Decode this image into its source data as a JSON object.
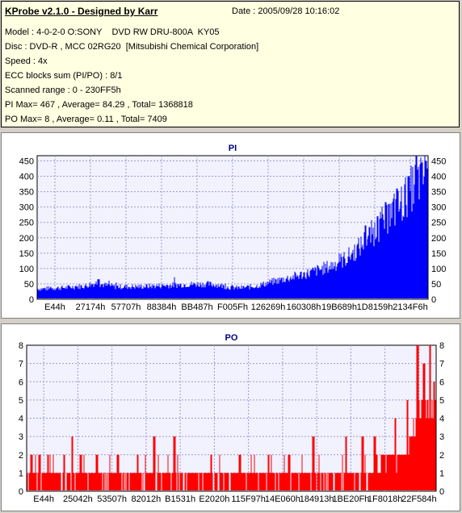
{
  "header": {
    "title": "KProbe v2.1.0 - Designed by Karr",
    "date": "Date : 2005/09/28 10:16:02",
    "lines": [
      "Model : 4-0-2-0 O:SONY    DVD RW DRU-800A  KY05",
      "Disc : DVD-R , MCC 02RG20  [Mitsubishi Chemical Corporation]",
      "Speed : 4x",
      "ECC blocks sum (PI/PO) : 8/1",
      "Scanned range : 0 - 230FF5h",
      "PI Max= 467 , Average= 84.29 , Total= 1368818",
      "PO Max= 8 , Average= 0.11 , Total= 7409"
    ]
  },
  "chart_data": [
    {
      "type": "bar",
      "title": "PI",
      "color": "#0000ff",
      "ylim": [
        0,
        467
      ],
      "yticks": [
        0,
        50,
        100,
        150,
        200,
        250,
        300,
        350,
        400,
        450
      ],
      "xticks": [
        "E44h",
        "27174h",
        "57707h",
        "88384h",
        "BB487h",
        "F005Fh",
        "126269h",
        "160308h",
        "19B689h",
        "1D8159h",
        "2134F6h"
      ],
      "profile": [
        [
          0,
          33
        ],
        [
          0.04,
          35
        ],
        [
          0.08,
          38
        ],
        [
          0.12,
          42
        ],
        [
          0.15,
          52
        ],
        [
          0.17,
          45
        ],
        [
          0.2,
          40
        ],
        [
          0.26,
          40
        ],
        [
          0.33,
          44
        ],
        [
          0.38,
          47
        ],
        [
          0.43,
          48
        ],
        [
          0.46,
          46
        ],
        [
          0.49,
          38
        ],
        [
          0.52,
          36
        ],
        [
          0.56,
          42
        ],
        [
          0.6,
          55
        ],
        [
          0.65,
          70
        ],
        [
          0.7,
          85
        ],
        [
          0.75,
          105
        ],
        [
          0.79,
          130
        ],
        [
          0.82,
          160
        ],
        [
          0.85,
          200
        ],
        [
          0.88,
          240
        ],
        [
          0.91,
          280
        ],
        [
          0.93,
          300
        ],
        [
          0.95,
          340
        ],
        [
          0.97,
          370
        ],
        [
          1,
          400
        ]
      ],
      "peaks": [
        [
          0.155,
          65
        ],
        [
          0.84,
          240
        ],
        [
          0.87,
          270
        ],
        [
          0.9,
          310
        ],
        [
          0.92,
          360
        ],
        [
          0.95,
          400
        ],
        [
          0.97,
          467
        ],
        [
          0.985,
          445
        ],
        [
          0.995,
          450
        ]
      ]
    },
    {
      "type": "bar",
      "title": "PO",
      "color": "#ff0000",
      "ylim": [
        0,
        8
      ],
      "yticks": [
        0,
        1,
        2,
        3,
        4,
        5,
        6,
        7,
        8
      ],
      "xticks": [
        "E44h",
        "25042h",
        "53507h",
        "82012h",
        "B1531h",
        "E2020h",
        "115F97h",
        "14E060h",
        "184913h",
        "1BE20Fh",
        "1F8018h",
        "22F584h"
      ],
      "profile": [
        [
          0,
          1
        ],
        [
          0.85,
          1
        ],
        [
          0.88,
          2
        ],
        [
          0.92,
          2
        ],
        [
          0.95,
          4
        ],
        [
          1,
          5
        ]
      ],
      "peaks": [
        [
          0.01,
          2
        ],
        [
          0.03,
          2
        ],
        [
          0.05,
          2
        ],
        [
          0.09,
          2
        ],
        [
          0.11,
          3
        ],
        [
          0.13,
          2
        ],
        [
          0.17,
          2
        ],
        [
          0.22,
          2
        ],
        [
          0.27,
          2
        ],
        [
          0.31,
          3
        ],
        [
          0.36,
          3
        ],
        [
          0.45,
          2
        ],
        [
          0.52,
          2
        ],
        [
          0.59,
          2
        ],
        [
          0.64,
          2
        ],
        [
          0.7,
          3
        ],
        [
          0.78,
          3
        ],
        [
          0.82,
          3
        ],
        [
          0.85,
          3
        ],
        [
          0.9,
          4
        ],
        [
          0.93,
          5
        ],
        [
          0.955,
          8
        ],
        [
          0.97,
          7
        ],
        [
          0.985,
          8
        ],
        [
          0.995,
          6
        ]
      ]
    }
  ]
}
